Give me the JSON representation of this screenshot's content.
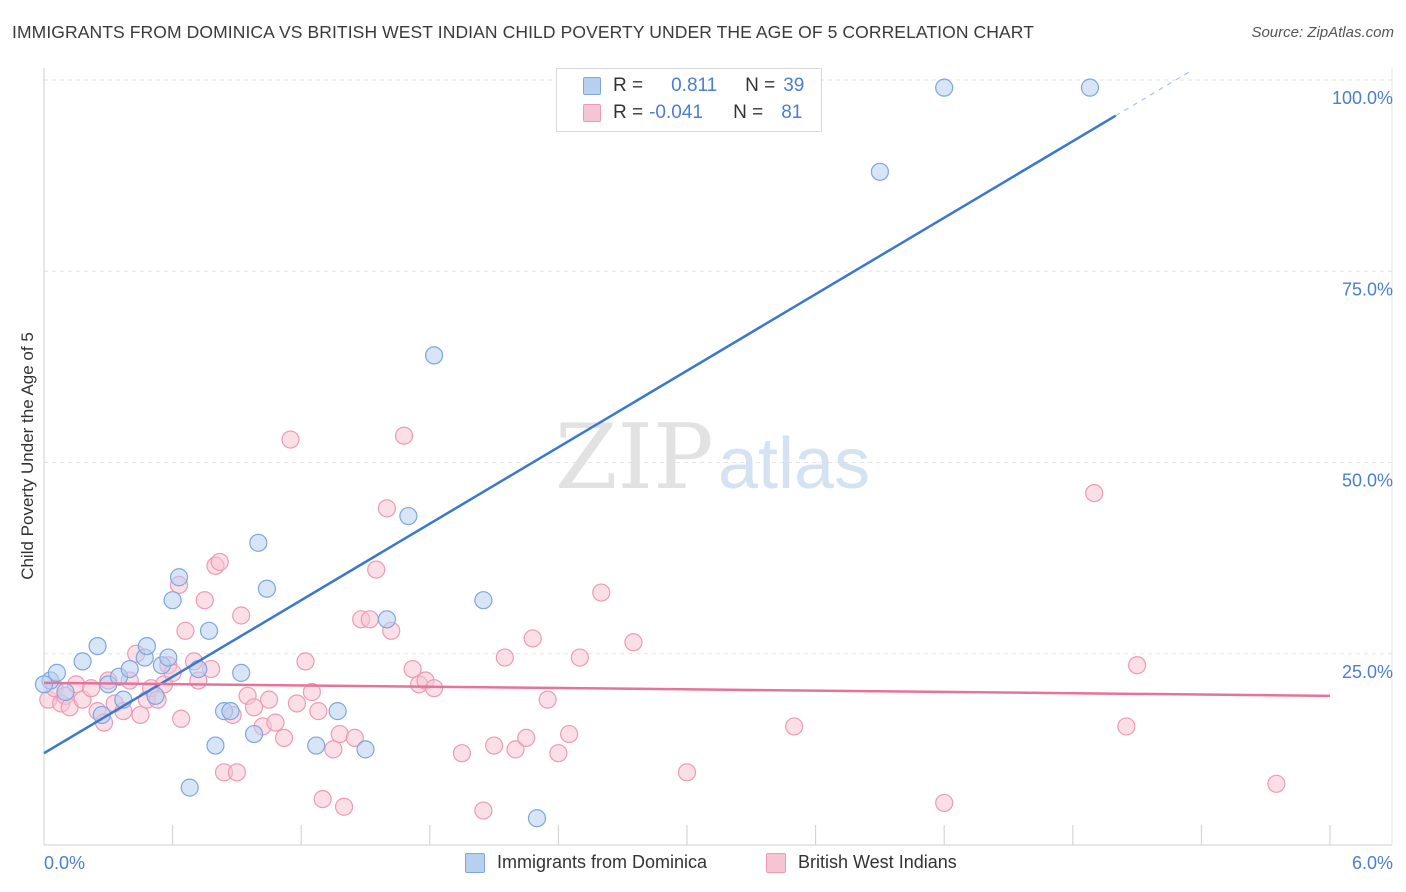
{
  "header": {
    "title": "IMMIGRANTS FROM DOMINICA VS BRITISH WEST INDIAN CHILD POVERTY UNDER THE AGE OF 5 CORRELATION CHART",
    "source": "Source: ZipAtlas.com"
  },
  "watermark": {
    "zip": "ZIP",
    "atlas": "atlas"
  },
  "legend": {
    "rows": [
      {
        "r_label": "R =",
        "r_value": "0.811",
        "n_label": "N =",
        "n_value": "39"
      },
      {
        "r_label": "R =",
        "r_value": "-0.041",
        "n_label": "N =",
        "n_value": "81"
      }
    ]
  },
  "colors": {
    "blue_fill": "#b8d0f0",
    "blue_stroke": "#7ea6e0",
    "blue_line": "#3a78d0",
    "pink_fill": "#f6c5d3",
    "pink_stroke": "#ee9ab4",
    "pink_line": "#e8739a",
    "axis_value": "#4a7fd0"
  },
  "chart_data": {
    "type": "scatter",
    "title": "IMMIGRANTS FROM DOMINICA VS BRITISH WEST INDIAN CHILD POVERTY UNDER THE AGE OF 5 CORRELATION CHART",
    "xlabel": "",
    "ylabel": "Child Poverty Under the Age of 5",
    "xlim": [
      0,
      6
    ],
    "ylim": [
      0,
      100
    ],
    "x_tick_labels": [
      "0.0%",
      "6.0%"
    ],
    "y_ticks": [
      25,
      50,
      75,
      100
    ],
    "y_tick_labels": [
      "25.0%",
      "50.0%",
      "75.0%",
      "100.0%"
    ],
    "grid": true,
    "legend_position": "top-center",
    "series": [
      {
        "name": "Immigrants from Dominica",
        "color": "blue",
        "r": 0.811,
        "n": 39,
        "trend": {
          "x0": 0,
          "y0": 12,
          "x1": 6,
          "y1": 112,
          "solid_until_x": 5.0
        },
        "points": [
          [
            0.03,
            21.5
          ],
          [
            0.06,
            22.5
          ],
          [
            0.1,
            20
          ],
          [
            0.18,
            24
          ],
          [
            0.25,
            26
          ],
          [
            0.27,
            17
          ],
          [
            0.3,
            21
          ],
          [
            0.35,
            22
          ],
          [
            0.37,
            19
          ],
          [
            0.4,
            23
          ],
          [
            0.47,
            24.5
          ],
          [
            0.48,
            26
          ],
          [
            0.52,
            19.5
          ],
          [
            0.55,
            23.5
          ],
          [
            0.58,
            24.5
          ],
          [
            0.6,
            32
          ],
          [
            0.63,
            35
          ],
          [
            0.68,
            7.5
          ],
          [
            0.72,
            23
          ],
          [
            0.77,
            28
          ],
          [
            0.8,
            13
          ],
          [
            0.84,
            17.5
          ],
          [
            0.87,
            17.5
          ],
          [
            0.92,
            22.5
          ],
          [
            0.98,
            14.5
          ],
          [
            1.0,
            39.5
          ],
          [
            1.04,
            33.5
          ],
          [
            1.27,
            13
          ],
          [
            1.37,
            17.5
          ],
          [
            1.5,
            12.5
          ],
          [
            1.6,
            29.5
          ],
          [
            1.7,
            43
          ],
          [
            1.82,
            64
          ],
          [
            2.05,
            32
          ],
          [
            2.3,
            3.5
          ],
          [
            3.9,
            88
          ],
          [
            4.2,
            99
          ],
          [
            4.88,
            99
          ],
          [
            0.0,
            21
          ]
        ]
      },
      {
        "name": "British West Indians",
        "color": "pink",
        "r": -0.041,
        "n": 81,
        "trend": {
          "x0": 0,
          "y0": 21.2,
          "x1": 6,
          "y1": 19.5
        },
        "points": [
          [
            0.02,
            19
          ],
          [
            0.05,
            20.5
          ],
          [
            0.08,
            18.5
          ],
          [
            0.1,
            19.5
          ],
          [
            0.12,
            18
          ],
          [
            0.15,
            21
          ],
          [
            0.18,
            19
          ],
          [
            0.22,
            20.5
          ],
          [
            0.25,
            17.5
          ],
          [
            0.28,
            16
          ],
          [
            0.3,
            21.5
          ],
          [
            0.33,
            18.5
          ],
          [
            0.37,
            17.5
          ],
          [
            0.4,
            21.5
          ],
          [
            0.43,
            25
          ],
          [
            0.45,
            17
          ],
          [
            0.48,
            19
          ],
          [
            0.5,
            20.5
          ],
          [
            0.53,
            19
          ],
          [
            0.56,
            21
          ],
          [
            0.58,
            23.5
          ],
          [
            0.6,
            22.5
          ],
          [
            0.63,
            34
          ],
          [
            0.64,
            16.5
          ],
          [
            0.66,
            28
          ],
          [
            0.7,
            24
          ],
          [
            0.72,
            21.5
          ],
          [
            0.75,
            32
          ],
          [
            0.78,
            23
          ],
          [
            0.8,
            36.5
          ],
          [
            0.82,
            37
          ],
          [
            0.84,
            9.5
          ],
          [
            0.88,
            17
          ],
          [
            0.9,
            9.5
          ],
          [
            0.92,
            30
          ],
          [
            0.95,
            19.5
          ],
          [
            0.98,
            18
          ],
          [
            1.02,
            15.5
          ],
          [
            1.05,
            19
          ],
          [
            1.08,
            16
          ],
          [
            1.12,
            14
          ],
          [
            1.15,
            53
          ],
          [
            1.18,
            18.5
          ],
          [
            1.22,
            24
          ],
          [
            1.25,
            20
          ],
          [
            1.28,
            17.5
          ],
          [
            1.3,
            6
          ],
          [
            1.35,
            12.5
          ],
          [
            1.38,
            14.5
          ],
          [
            1.4,
            5
          ],
          [
            1.45,
            14
          ],
          [
            1.48,
            29.5
          ],
          [
            1.52,
            29.5
          ],
          [
            1.55,
            36
          ],
          [
            1.6,
            44
          ],
          [
            1.62,
            28
          ],
          [
            1.68,
            53.5
          ],
          [
            1.72,
            23
          ],
          [
            1.75,
            21
          ],
          [
            1.78,
            21.5
          ],
          [
            1.82,
            20.5
          ],
          [
            1.95,
            12
          ],
          [
            2.05,
            4.5
          ],
          [
            2.1,
            13
          ],
          [
            2.15,
            24.5
          ],
          [
            2.2,
            12.5
          ],
          [
            2.25,
            14
          ],
          [
            2.28,
            27
          ],
          [
            2.35,
            19
          ],
          [
            2.4,
            12
          ],
          [
            2.45,
            14.5
          ],
          [
            2.5,
            24.5
          ],
          [
            2.6,
            33
          ],
          [
            2.75,
            26.5
          ],
          [
            3.0,
            9.5
          ],
          [
            3.5,
            15.5
          ],
          [
            4.2,
            5.5
          ],
          [
            4.9,
            46
          ],
          [
            5.05,
            15.5
          ],
          [
            5.1,
            23.5
          ],
          [
            5.75,
            8
          ]
        ]
      }
    ]
  }
}
